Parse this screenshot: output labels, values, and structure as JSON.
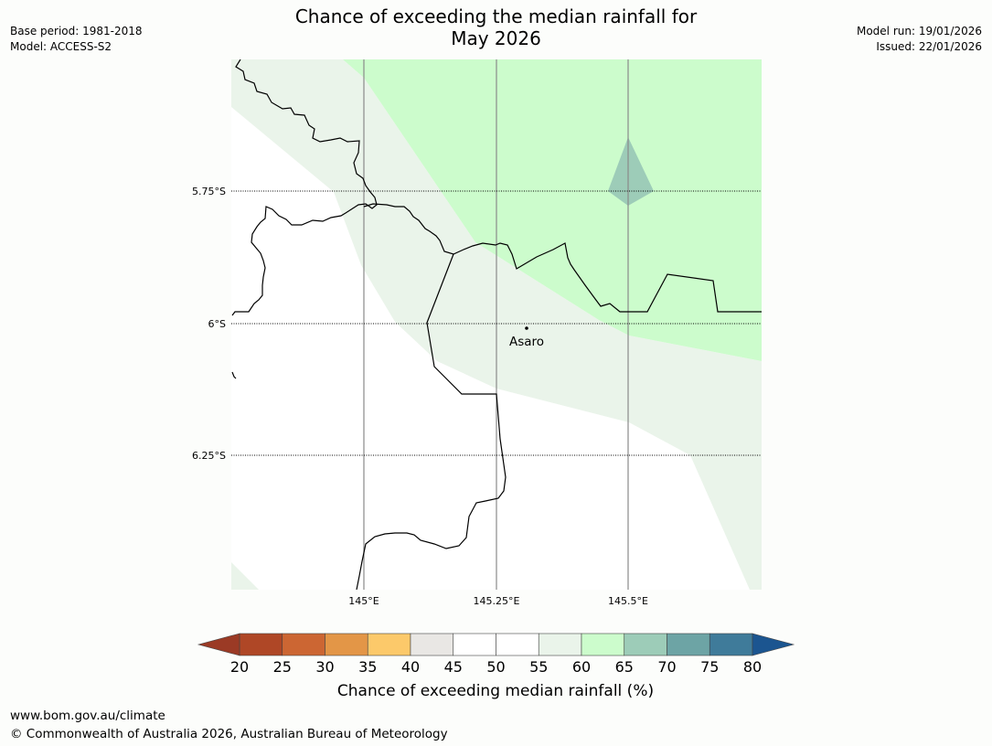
{
  "title": {
    "line1": "Chance of exceeding the median rainfall for",
    "line2": "May 2026"
  },
  "meta_left": {
    "base_period": "Base period: 1981-2018",
    "model": "Model: ACCESS-S2"
  },
  "meta_right": {
    "model_run": "Model run: 19/01/2026",
    "issued": "Issued: 22/01/2026"
  },
  "map": {
    "lat_labels": [
      "5.75°S",
      "6°S",
      "6.25°S"
    ],
    "lon_labels": [
      "145°E",
      "145.25°E",
      "145.5°E"
    ],
    "town": "Asaro",
    "colors": {
      "band_55_60": "#eaf4ea",
      "band_60_65": "#ccfccc",
      "band_65_70": "#9dccb8",
      "border": "#000000",
      "gridline": "#8a8a8a"
    }
  },
  "colorbar": {
    "ticks": [
      "20",
      "25",
      "30",
      "35",
      "40",
      "45",
      "50",
      "55",
      "60",
      "65",
      "70",
      "75",
      "80"
    ],
    "colors": [
      "#af4726",
      "#cc6633",
      "#e39647",
      "#fcc96a",
      "#e9e7e4",
      "#ffffff",
      "#ffffff",
      "#eaf4ea",
      "#ccfccc",
      "#9dccb8",
      "#6da4a5",
      "#3f7b9a"
    ],
    "under_color": "#9b3a25",
    "over_color": "#1b5590",
    "label": "Chance of exceeding median rainfall (%)"
  },
  "footer": {
    "url": "www.bom.gov.au/climate",
    "copyright": "© Commonwealth of Australia 2026, Australian Bureau of Meteorology"
  }
}
